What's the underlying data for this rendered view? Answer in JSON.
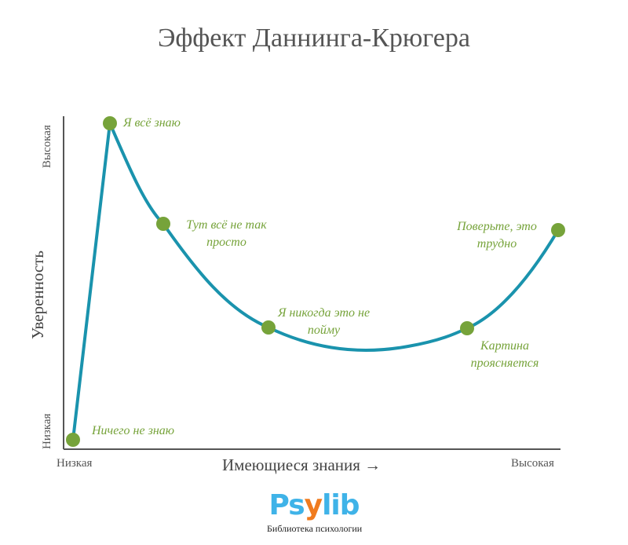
{
  "title": "Эффект Даннинга-Крюгера",
  "axes": {
    "x_label": "Имеющиеся знания →",
    "y_label": "Уверенность",
    "x_low": "Низкая",
    "x_high": "Высокая",
    "y_low": "Низкая",
    "y_high": "Высокая"
  },
  "stages": [
    {
      "label": "Ничего не знаю"
    },
    {
      "label": "Я всё знаю"
    },
    {
      "label": "Тут всё не так просто"
    },
    {
      "label": "Я никогда это не пойму"
    },
    {
      "label": "Картина проясняется"
    },
    {
      "label": "Поверьте, это трудно"
    }
  ],
  "colors": {
    "curve": "#1a93ad",
    "points": "#76a33a",
    "labels": "#76a33a",
    "axis": "#555555"
  },
  "logo": {
    "word_start": "Ps",
    "word_y": "y",
    "word_end": "lib",
    "subtitle": "Библиотека психологии"
  }
}
